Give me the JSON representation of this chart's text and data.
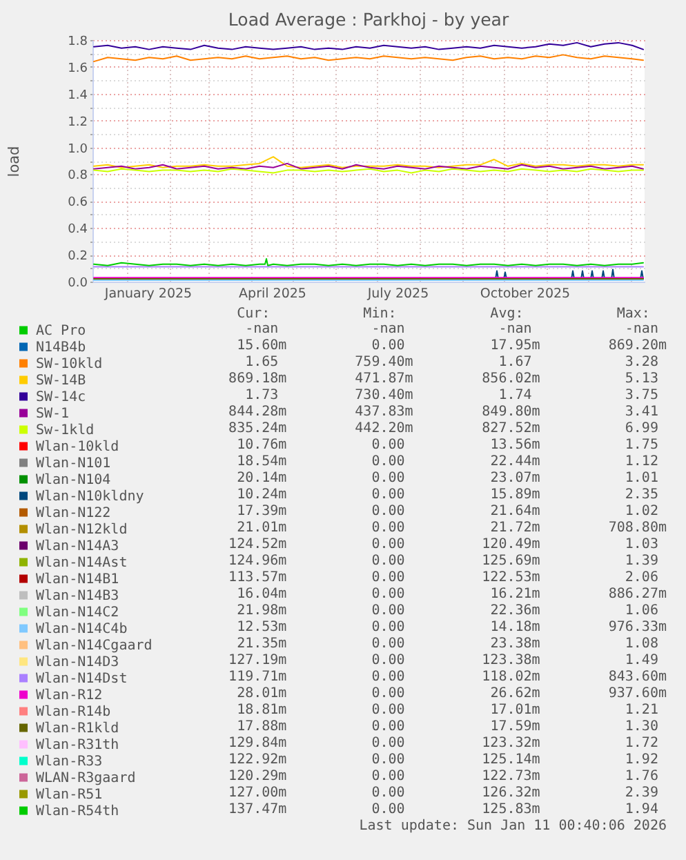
{
  "chart_data": {
    "type": "line",
    "title": "Load Average : Parkhoj - by year",
    "ylabel": "load",
    "xlim": [
      "2024-12-07",
      "2026-01-11"
    ],
    "xticks": [
      {
        "value": "2025-01-01",
        "label": null
      },
      {
        "value": "2025-01-16",
        "label": "January 2025"
      },
      {
        "value": "2025-02-01",
        "label": null
      },
      {
        "value": "2025-03-01",
        "label": null
      },
      {
        "value": "2025-04-01",
        "label": null
      },
      {
        "value": "2025-04-16",
        "label": "April 2025"
      },
      {
        "value": "2025-05-01",
        "label": null
      },
      {
        "value": "2025-06-01",
        "label": null
      },
      {
        "value": "2025-07-01",
        "label": null
      },
      {
        "value": "2025-07-16",
        "label": "July 2025"
      },
      {
        "value": "2025-08-01",
        "label": null
      },
      {
        "value": "2025-09-01",
        "label": null
      },
      {
        "value": "2025-10-01",
        "label": null
      },
      {
        "value": "2025-10-16",
        "label": "October 2025"
      },
      {
        "value": "2025-11-01",
        "label": null
      },
      {
        "value": "2025-12-01",
        "label": null
      },
      {
        "value": "2026-01-01",
        "label": null
      }
    ],
    "ylim": [
      0,
      1.8
    ],
    "yticks": [
      {
        "value": 0,
        "label": "0.0"
      },
      {
        "value": 0.1,
        "label": null
      },
      0.2,
      {
        "value": 0.3,
        "label": null
      },
      0.4,
      {
        "value": 0.5,
        "label": null
      },
      0.6,
      {
        "value": 0.7,
        "label": null
      },
      0.8,
      {
        "value": 0.9,
        "label": null
      },
      {
        "value": 1,
        "label": "1.0"
      },
      {
        "value": 1.1,
        "label": null
      },
      1.2,
      {
        "value": 1.3,
        "label": null
      },
      1.4,
      {
        "value": 1.5,
        "label": null
      },
      1.6,
      {
        "value": 1.7,
        "label": null
      },
      1.8
    ],
    "grid": true,
    "legend": "bottom",
    "x": [
      "2024-12-08",
      "2024-12-18",
      "2024-12-28",
      "2025-01-07",
      "2025-01-17",
      "2025-01-27",
      "2025-02-06",
      "2025-02-16",
      "2025-02-26",
      "2025-03-08",
      "2025-03-18",
      "2025-03-28",
      "2025-04-07",
      "2025-04-17",
      "2025-04-27",
      "2025-05-07",
      "2025-05-17",
      "2025-05-27",
      "2025-06-06",
      "2025-06-16",
      "2025-06-26",
      "2025-07-06",
      "2025-07-16",
      "2025-07-26",
      "2025-08-05",
      "2025-08-15",
      "2025-08-25",
      "2025-09-04",
      "2025-09-14",
      "2025-09-24",
      "2025-10-04",
      "2025-10-14",
      "2025-10-24",
      "2025-11-03",
      "2025-11-13",
      "2025-11-23",
      "2025-12-03",
      "2025-12-13",
      "2025-12-23",
      "2026-01-02",
      "2026-01-10"
    ],
    "series": [
      {
        "name": "AC Pro",
        "color": "#00cc00",
        "values": [
          null,
          null,
          null,
          null,
          null,
          null,
          null,
          null,
          null,
          null,
          null,
          null,
          null,
          null,
          null,
          null,
          null,
          null,
          null,
          null,
          null,
          null,
          null,
          null,
          null,
          null,
          null,
          null,
          null,
          null,
          null,
          null,
          null,
          null,
          null,
          null,
          null,
          null,
          null,
          null,
          null
        ]
      },
      {
        "name": "N14B4b",
        "color": "#0066b3",
        "values": [
          null,
          null,
          null,
          null,
          null,
          null,
          null,
          null,
          null,
          null,
          null,
          null,
          null,
          null,
          null,
          null,
          null,
          null,
          null,
          null,
          null,
          null,
          null,
          null,
          null,
          null,
          null,
          null,
          null,
          null,
          null,
          null,
          null,
          null,
          null,
          null,
          null,
          null,
          null,
          null,
          null
        ]
      },
      {
        "name": "SW-10kld",
        "color": "#ff8000",
        "values": [
          1.64,
          1.67,
          1.66,
          1.65,
          1.67,
          1.66,
          1.68,
          1.65,
          1.66,
          1.67,
          1.66,
          1.68,
          1.66,
          1.67,
          1.68,
          1.66,
          1.67,
          1.65,
          1.66,
          1.67,
          1.66,
          1.68,
          1.67,
          1.66,
          1.67,
          1.66,
          1.65,
          1.67,
          1.68,
          1.66,
          1.67,
          1.66,
          1.68,
          1.67,
          1.69,
          1.67,
          1.66,
          1.68,
          1.67,
          1.66,
          1.65
        ]
      },
      {
        "name": "SW-14B",
        "color": "#ffcc00",
        "values": [
          0.86,
          0.87,
          0.85,
          0.86,
          0.87,
          0.85,
          0.86,
          0.86,
          0.87,
          0.86,
          0.86,
          0.87,
          0.88,
          0.93,
          0.86,
          0.85,
          0.86,
          0.87,
          0.85,
          0.86,
          0.86,
          0.86,
          0.87,
          0.86,
          0.86,
          0.85,
          0.86,
          0.87,
          0.87,
          0.91,
          0.86,
          0.88,
          0.86,
          0.87,
          0.87,
          0.86,
          0.87,
          0.87,
          0.86,
          0.87,
          0.87
        ]
      },
      {
        "name": "SW-14c",
        "color": "#330099",
        "values": [
          1.75,
          1.76,
          1.74,
          1.75,
          1.73,
          1.75,
          1.74,
          1.73,
          1.76,
          1.74,
          1.73,
          1.75,
          1.74,
          1.73,
          1.74,
          1.75,
          1.73,
          1.74,
          1.73,
          1.75,
          1.74,
          1.76,
          1.75,
          1.74,
          1.75,
          1.73,
          1.74,
          1.75,
          1.74,
          1.76,
          1.75,
          1.74,
          1.75,
          1.77,
          1.76,
          1.78,
          1.75,
          1.77,
          1.78,
          1.76,
          1.73
        ]
      },
      {
        "name": "SW-1",
        "color": "#990099",
        "values": [
          0.84,
          0.85,
          0.86,
          0.84,
          0.85,
          0.87,
          0.84,
          0.85,
          0.86,
          0.84,
          0.85,
          0.84,
          0.86,
          0.85,
          0.88,
          0.84,
          0.85,
          0.86,
          0.84,
          0.87,
          0.85,
          0.84,
          0.86,
          0.85,
          0.84,
          0.86,
          0.85,
          0.84,
          0.86,
          0.85,
          0.84,
          0.87,
          0.85,
          0.86,
          0.84,
          0.85,
          0.86,
          0.84,
          0.85,
          0.86,
          0.84
        ]
      },
      {
        "name": "Sw-1kld",
        "color": "#ccff00",
        "values": [
          0.83,
          0.82,
          0.84,
          0.83,
          0.82,
          0.83,
          0.83,
          0.82,
          0.83,
          0.82,
          0.84,
          0.83,
          0.82,
          0.81,
          0.83,
          0.83,
          0.82,
          0.83,
          0.82,
          0.83,
          0.84,
          0.82,
          0.83,
          0.81,
          0.83,
          0.82,
          0.84,
          0.83,
          0.82,
          0.83,
          0.82,
          0.84,
          0.83,
          0.82,
          0.83,
          0.82,
          0.84,
          0.83,
          0.82,
          0.83,
          0.83
        ]
      },
      {
        "name": "Wlan-10kld",
        "color": "#ff0000",
        "values": [
          null,
          null,
          null,
          null,
          null,
          null,
          null,
          null,
          null,
          null,
          null,
          null,
          null,
          null,
          null,
          null,
          null,
          null,
          null,
          null,
          null,
          null,
          null,
          null,
          null,
          null,
          null,
          null,
          null,
          null,
          null,
          null,
          null,
          null,
          null,
          null,
          null,
          null,
          null,
          null,
          null
        ]
      },
      {
        "name": "Wlan-N101",
        "color": "#808080",
        "values": [
          null,
          null,
          null,
          null,
          null,
          null,
          null,
          null,
          null,
          null,
          null,
          null,
          null,
          null,
          null,
          null,
          null,
          null,
          null,
          null,
          null,
          null,
          null,
          null,
          null,
          null,
          null,
          null,
          null,
          null,
          null,
          null,
          null,
          null,
          null,
          null,
          null,
          null,
          null,
          null,
          null
        ]
      },
      {
        "name": "Wlan-N104",
        "color": "#008f00",
        "values": [
          null,
          null,
          null,
          null,
          null,
          null,
          null,
          null,
          null,
          null,
          null,
          null,
          null,
          null,
          null,
          null,
          null,
          null,
          null,
          null,
          null,
          null,
          null,
          null,
          null,
          null,
          null,
          null,
          null,
          null,
          null,
          null,
          null,
          null,
          null,
          null,
          null,
          null,
          null,
          null,
          null
        ]
      },
      {
        "name": "Wlan-N10kldny",
        "color": "#00487d",
        "x": [
          "2025-09-25",
          "2025-09-26",
          "2025-09-27",
          "2025-10-01",
          "2025-10-02",
          "2025-10-03",
          "2025-10-04",
          "2025-11-19",
          "2025-11-20",
          "2025-11-21",
          "2025-11-22",
          "2025-11-26",
          "2025-11-27",
          "2025-11-28",
          "2025-11-29",
          "2025-12-03",
          "2025-12-04",
          "2025-12-05",
          "2025-12-06",
          "2025-12-11",
          "2025-12-12",
          "2025-12-13",
          "2025-12-14",
          "2025-12-18",
          "2025-12-19",
          "2025-12-20",
          "2025-12-21",
          "2026-01-08",
          "2026-01-09",
          "2026-01-10"
        ],
        "values": [
          0.02,
          0.08,
          0.02,
          0.02,
          0.07,
          0.02,
          null,
          0.02,
          0.08,
          0.02,
          null,
          0.02,
          0.08,
          0.02,
          null,
          0.02,
          0.08,
          0.02,
          null,
          0.02,
          0.08,
          0.02,
          null,
          0.02,
          0.09,
          0.02,
          null,
          0.02,
          0.08,
          0.02
        ]
      },
      {
        "name": "Wlan-N122",
        "color": "#b35a00",
        "values": [
          null,
          null,
          null,
          null,
          null,
          null,
          null,
          null,
          null,
          null,
          null,
          null,
          null,
          null,
          null,
          null,
          null,
          null,
          null,
          null,
          null,
          null,
          null,
          null,
          null,
          null,
          null,
          null,
          null,
          null,
          null,
          null,
          null,
          null,
          null,
          null,
          null,
          null,
          null,
          null,
          null
        ]
      },
      {
        "name": "Wlan-N12kld",
        "color": "#b38f00",
        "values": [
          null,
          null,
          null,
          null,
          null,
          null,
          null,
          null,
          null,
          null,
          null,
          null,
          null,
          null,
          null,
          null,
          null,
          null,
          null,
          null,
          null,
          null,
          null,
          null,
          null,
          null,
          null,
          null,
          null,
          null,
          null,
          null,
          null,
          null,
          null,
          null,
          null,
          null,
          null,
          null,
          null
        ]
      },
      {
        "name": "Wlan-N14A3",
        "color": "#6b006b",
        "values": [
          null,
          null,
          null,
          null,
          null,
          null,
          null,
          null,
          null,
          null,
          null,
          null,
          null,
          null,
          null,
          null,
          null,
          null,
          null,
          null,
          null,
          null,
          null,
          null,
          null,
          null,
          null,
          null,
          null,
          null,
          null,
          null,
          null,
          null,
          null,
          null,
          null,
          null,
          null,
          null,
          null
        ]
      },
      {
        "name": "Wlan-N14Ast",
        "color": "#8fb300",
        "values": [
          null,
          null,
          null,
          null,
          null,
          null,
          null,
          null,
          null,
          null,
          null,
          null,
          null,
          null,
          null,
          null,
          null,
          null,
          null,
          null,
          null,
          null,
          null,
          null,
          null,
          null,
          null,
          null,
          null,
          null,
          null,
          null,
          null,
          null,
          null,
          null,
          null,
          null,
          null,
          null,
          null
        ]
      },
      {
        "name": "Wlan-N14B1",
        "color": "#b30000",
        "values": [
          null,
          null,
          null,
          null,
          null,
          null,
          null,
          null,
          null,
          null,
          null,
          null,
          null,
          null,
          null,
          null,
          null,
          null,
          null,
          null,
          null,
          null,
          null,
          null,
          null,
          null,
          null,
          null,
          null,
          null,
          null,
          null,
          null,
          null,
          null,
          null,
          null,
          null,
          null,
          null,
          null
        ]
      },
      {
        "name": "Wlan-N14B3",
        "color": "#bebebe",
        "values": [
          null,
          null,
          null,
          null,
          null,
          null,
          null,
          null,
          null,
          null,
          null,
          null,
          null,
          null,
          null,
          null,
          null,
          null,
          null,
          null,
          null,
          null,
          null,
          null,
          null,
          null,
          null,
          null,
          null,
          null,
          null,
          null,
          null,
          null,
          null,
          null,
          null,
          null,
          null,
          null,
          null
        ]
      },
      {
        "name": "Wlan-N14C2",
        "color": "#80ff80",
        "values": [
          null,
          null,
          null,
          null,
          null,
          null,
          null,
          null,
          null,
          null,
          null,
          null,
          null,
          null,
          null,
          null,
          null,
          null,
          null,
          null,
          null,
          null,
          null,
          null,
          null,
          null,
          null,
          null,
          null,
          null,
          null,
          null,
          null,
          null,
          null,
          null,
          null,
          null,
          null,
          null,
          null
        ]
      },
      {
        "name": "Wlan-N14C4b",
        "color": "#80c9ff",
        "values": [
          0.01,
          0.01,
          0.01,
          0.01,
          0.01,
          0.01,
          0.01,
          0.01,
          0.01,
          0.01,
          0.01,
          0.01,
          0.01,
          0.01,
          0.01,
          0.01,
          0.01,
          0.01,
          0.01,
          0.01,
          0.01,
          0.01,
          0.01,
          0.01,
          0.01,
          0.01,
          0.01,
          0.01,
          0.01,
          0.01,
          0.01,
          0.01,
          0.01,
          0.01,
          0.01,
          0.01,
          0.01,
          0.01,
          0.01,
          0.01,
          0.01
        ]
      },
      {
        "name": "Wlan-N14Cgaard",
        "color": "#ffc080",
        "values": [
          null,
          null,
          null,
          null,
          null,
          null,
          null,
          null,
          null,
          null,
          null,
          null,
          null,
          null,
          null,
          null,
          null,
          null,
          null,
          null,
          null,
          null,
          null,
          null,
          null,
          null,
          null,
          null,
          null,
          null,
          null,
          null,
          null,
          null,
          null,
          null,
          null,
          null,
          null,
          null,
          null
        ]
      },
      {
        "name": "Wlan-N14D3",
        "color": "#ffe680",
        "values": [
          null,
          null,
          null,
          null,
          null,
          null,
          null,
          null,
          null,
          null,
          null,
          null,
          null,
          null,
          null,
          null,
          null,
          null,
          null,
          null,
          null,
          null,
          null,
          null,
          null,
          null,
          null,
          null,
          null,
          null,
          null,
          null,
          null,
          null,
          null,
          null,
          null,
          null,
          null,
          null,
          null
        ]
      },
      {
        "name": "Wlan-N14Dst",
        "color": "#aa80ff",
        "values": [
          0.11,
          0.11,
          0.11,
          0.11,
          0.11,
          0.11,
          0.11,
          0.11,
          0.11,
          0.11,
          0.11,
          0.11,
          0.11,
          0.11,
          0.11,
          0.11,
          0.11,
          0.11,
          0.11,
          0.11,
          0.11,
          0.11,
          0.11,
          0.11,
          0.11,
          0.11,
          0.11,
          0.11,
          0.11,
          0.11,
          0.11,
          0.11,
          0.11,
          0.11,
          0.11,
          0.11,
          0.11,
          0.11,
          0.11,
          0.11,
          0.11
        ]
      },
      {
        "name": "Wlan-R12",
        "color": "#ee00cc",
        "values": [
          0.03,
          0.03,
          0.03,
          0.03,
          0.03,
          0.03,
          0.03,
          0.03,
          0.03,
          0.03,
          0.03,
          0.03,
          0.03,
          0.03,
          0.03,
          0.03,
          0.03,
          0.03,
          0.03,
          0.03,
          0.03,
          0.03,
          0.03,
          0.03,
          0.03,
          0.03,
          0.03,
          0.03,
          0.03,
          0.03,
          0.03,
          0.03,
          0.03,
          0.03,
          0.03,
          0.03,
          0.03,
          0.03,
          0.03,
          0.03,
          0.03
        ]
      },
      {
        "name": "Wlan-R14b",
        "color": "#ff8080",
        "values": [
          null,
          null,
          null,
          null,
          null,
          null,
          null,
          null,
          null,
          null,
          null,
          null,
          null,
          null,
          null,
          null,
          null,
          null,
          null,
          null,
          null,
          null,
          null,
          null,
          null,
          null,
          null,
          null,
          null,
          null,
          null,
          null,
          null,
          null,
          null,
          null,
          null,
          null,
          null,
          null,
          null
        ]
      },
      {
        "name": "Wlan-R1kld",
        "color": "#666600",
        "values": [
          0.02,
          0.02,
          0.02,
          0.02,
          0.02,
          0.02,
          0.02,
          0.02,
          0.02,
          0.02,
          0.02,
          0.02,
          0.02,
          0.02,
          0.02,
          0.02,
          0.02,
          0.02,
          0.02,
          0.02,
          0.02,
          0.02,
          0.02,
          0.02,
          0.02,
          0.02,
          0.02,
          0.02,
          0.02,
          0.02,
          0.02,
          0.02,
          0.02,
          0.02,
          0.02,
          0.02,
          0.02,
          0.02,
          0.02,
          0.02,
          0.02
        ]
      },
      {
        "name": "Wlan-R31th",
        "color": "#ffbfff",
        "values": [
          null,
          null,
          null,
          null,
          null,
          null,
          null,
          null,
          null,
          null,
          null,
          null,
          null,
          null,
          null,
          null,
          null,
          null,
          null,
          null,
          null,
          null,
          null,
          null,
          null,
          null,
          null,
          null,
          null,
          null,
          null,
          null,
          null,
          null,
          null,
          null,
          null,
          null,
          null,
          null,
          null
        ]
      },
      {
        "name": "Wlan-R33",
        "color": "#00ffcc",
        "values": [
          null,
          null,
          null,
          null,
          null,
          null,
          null,
          null,
          null,
          null,
          null,
          null,
          null,
          null,
          null,
          null,
          null,
          null,
          null,
          null,
          null,
          null,
          null,
          null,
          null,
          null,
          null,
          null,
          null,
          null,
          null,
          null,
          null,
          null,
          null,
          null,
          null,
          null,
          null,
          null,
          null
        ]
      },
      {
        "name": "WLAN-R3gaard",
        "color": "#cc6699",
        "values": [
          null,
          null,
          null,
          null,
          null,
          null,
          null,
          null,
          null,
          null,
          null,
          null,
          null,
          null,
          null,
          null,
          null,
          null,
          null,
          null,
          null,
          null,
          null,
          null,
          null,
          null,
          null,
          null,
          null,
          null,
          null,
          null,
          null,
          null,
          null,
          null,
          null,
          null,
          null,
          null,
          null
        ]
      },
      {
        "name": "Wlan-R51",
        "color": "#999900",
        "values": [
          null,
          null,
          null,
          null,
          null,
          null,
          null,
          null,
          null,
          null,
          null,
          null,
          null,
          null,
          null,
          null,
          null,
          null,
          null,
          null,
          null,
          null,
          null,
          null,
          null,
          null,
          null,
          null,
          null,
          null,
          null,
          null,
          null,
          null,
          null,
          null,
          null,
          null,
          null,
          null,
          null
        ]
      },
      {
        "name": "Wlan-R54th",
        "color": "#00cc00",
        "x": [
          "2024-12-08",
          "2024-12-18",
          "2024-12-28",
          "2025-01-07",
          "2025-01-17",
          "2025-01-27",
          "2025-02-06",
          "2025-02-16",
          "2025-02-26",
          "2025-03-08",
          "2025-03-18",
          "2025-03-28",
          "2025-04-07",
          "2025-04-11",
          "2025-04-12",
          "2025-04-13",
          "2025-04-17",
          "2025-04-27",
          "2025-05-07",
          "2025-05-17",
          "2025-05-27",
          "2025-06-06",
          "2025-06-16",
          "2025-06-26",
          "2025-07-06",
          "2025-07-16",
          "2025-07-26",
          "2025-08-05",
          "2025-08-15",
          "2025-08-25",
          "2025-09-04",
          "2025-09-14",
          "2025-09-24",
          "2025-10-04",
          "2025-10-14",
          "2025-10-24",
          "2025-11-03",
          "2025-11-13",
          "2025-11-23",
          "2025-12-03",
          "2025-12-13",
          "2025-12-23",
          "2026-01-02",
          "2026-01-10"
        ],
        "values": [
          0.13,
          0.12,
          0.14,
          0.13,
          0.12,
          0.13,
          0.13,
          0.12,
          0.13,
          0.12,
          0.13,
          0.12,
          0.13,
          0.13,
          0.17,
          0.12,
          0.13,
          0.12,
          0.13,
          0.13,
          0.12,
          0.13,
          0.12,
          0.13,
          0.13,
          0.12,
          0.13,
          0.12,
          0.13,
          0.13,
          0.12,
          0.13,
          0.13,
          0.12,
          0.13,
          0.12,
          0.13,
          0.13,
          0.12,
          0.13,
          0.12,
          0.13,
          0.13,
          0.14
        ]
      }
    ],
    "annotations": [
      "Cur:",
      "Min:",
      "Avg:",
      "Max:",
      "-nan",
      "-nan",
      "-nan",
      "-nan",
      "15.60m",
      "0.00",
      "17.95m",
      "869.20m",
      "1.65",
      "759.40m",
      "1.67",
      "3.28",
      "869.18m",
      "471.87m",
      "856.02m",
      "5.13",
      "1.73",
      "730.40m",
      "1.74",
      "3.75",
      "844.28m",
      "437.83m",
      "849.80m",
      "3.41",
      "835.24m",
      "442.20m",
      "827.52m",
      "6.99",
      "10.76m",
      "0.00",
      "13.56m",
      "1.75",
      "18.54m",
      "0.00",
      "22.44m",
      "1.12",
      "20.14m",
      "0.00",
      "23.07m",
      "1.01",
      "10.24m",
      "0.00",
      "15.89m",
      "2.35",
      "17.39m",
      "0.00",
      "21.64m",
      "1.02",
      "21.01m",
      "0.00",
      "21.72m",
      "708.80m",
      "124.52m",
      "0.00",
      "120.49m",
      "1.03",
      "124.96m",
      "0.00",
      "125.69m",
      "1.39",
      "113.57m",
      "0.00",
      "122.53m",
      "2.06",
      "16.04m",
      "0.00",
      "16.21m",
      "886.27m",
      "21.98m",
      "0.00",
      "22.36m",
      "1.06",
      "12.53m",
      "0.00",
      "14.18m",
      "976.33m",
      "21.35m",
      "0.00",
      "23.38m",
      "1.08",
      "127.19m",
      "0.00",
      "123.38m",
      "1.49",
      "119.71m",
      "0.00",
      "118.02m",
      "843.60m",
      "28.01m",
      "0.00",
      "26.62m",
      "937.60m",
      "18.81m",
      "0.00",
      "17.01m",
      "1.21",
      "17.88m",
      "0.00",
      "17.59m",
      "1.30",
      "129.84m",
      "0.00",
      "123.32m",
      "1.72",
      "122.92m",
      "0.00",
      "125.14m",
      "1.92",
      "120.29m",
      "0.00",
      "122.73m",
      "1.76",
      "127.00m",
      "0.00",
      "126.32m",
      "2.39",
      "137.47m",
      "0.00",
      "125.83m",
      "1.94",
      "Last update: Sun Jan 11 00:40:06 2026"
    ]
  }
}
